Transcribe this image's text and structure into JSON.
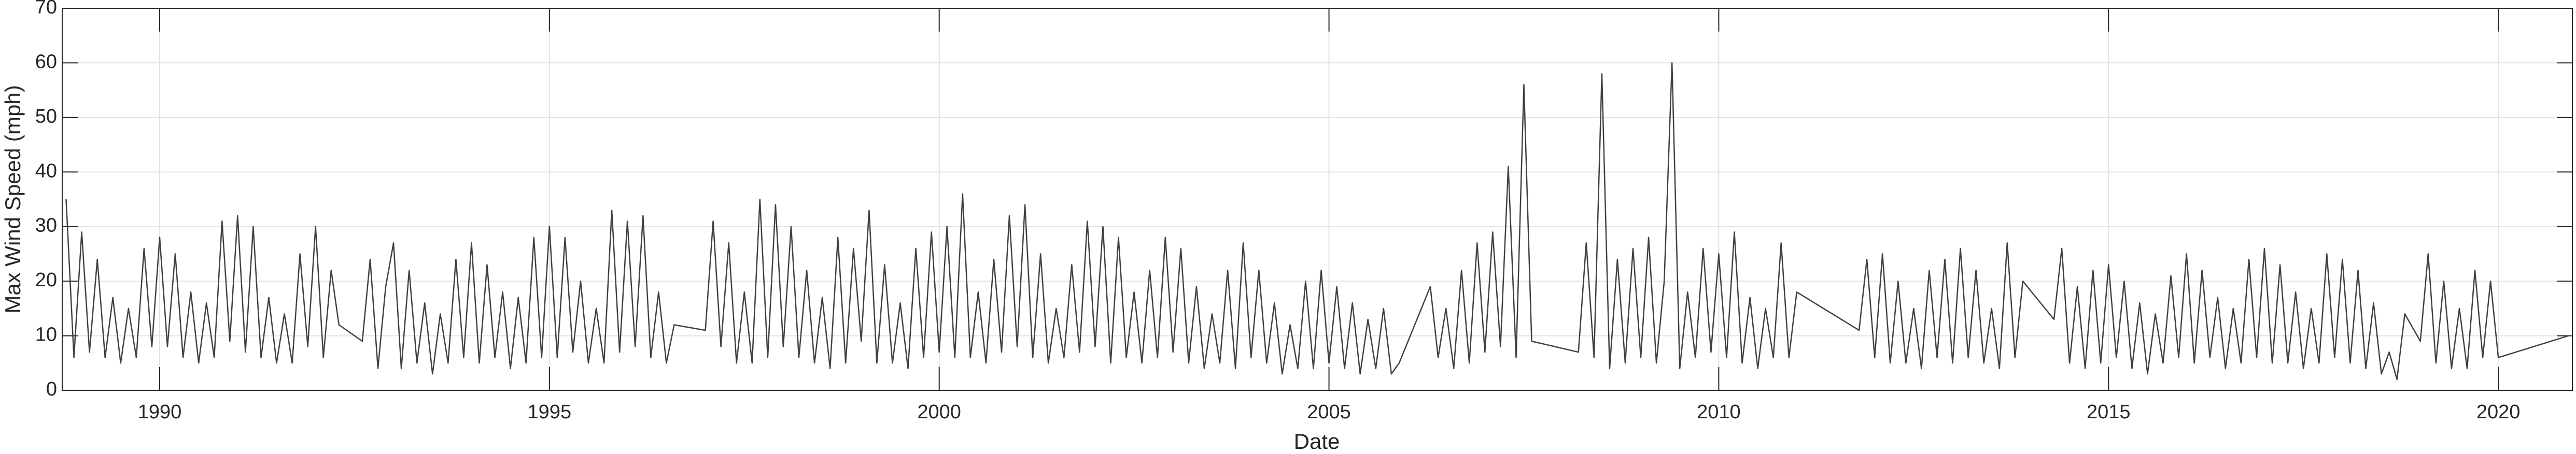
{
  "chart_data": {
    "type": "line",
    "xlabel": "Date",
    "ylabel": "Max Wind Speed (mph)",
    "xlim": [
      1988.75,
      2020.95
    ],
    "xticks": [
      1990,
      1995,
      2000,
      2005,
      2010,
      2015,
      2020
    ],
    "ylim": [
      0,
      70
    ],
    "yticks": [
      0,
      10,
      20,
      30,
      40,
      50,
      60,
      70
    ],
    "grid": true,
    "color": "#404040",
    "x": [
      1988.8,
      1988.9,
      1989.0,
      1989.1,
      1989.2,
      1989.3,
      1989.4,
      1989.5,
      1989.6,
      1989.7,
      1989.8,
      1989.9,
      1990.0,
      1990.1,
      1990.2,
      1990.3,
      1990.4,
      1990.5,
      1990.6,
      1990.7,
      1990.8,
      1990.9,
      1991.0,
      1991.1,
      1991.2,
      1991.3,
      1991.4,
      1991.5,
      1991.6,
      1991.7,
      1991.8,
      1991.9,
      1992.0,
      1992.1,
      1992.2,
      1992.3,
      1992.6,
      1992.7,
      1992.8,
      1992.9,
      1993.0,
      1993.1,
      1993.2,
      1993.3,
      1993.4,
      1993.5,
      1993.6,
      1993.7,
      1993.8,
      1993.9,
      1994.0,
      1994.1,
      1994.2,
      1994.3,
      1994.4,
      1994.5,
      1994.6,
      1994.7,
      1994.8,
      1994.9,
      1995.0,
      1995.1,
      1995.2,
      1995.3,
      1995.4,
      1995.5,
      1995.6,
      1995.7,
      1995.8,
      1995.9,
      1996.0,
      1996.1,
      1996.2,
      1996.3,
      1996.4,
      1996.5,
      1996.6,
      1997.0,
      1997.1,
      1997.2,
      1997.3,
      1997.4,
      1997.5,
      1997.6,
      1997.7,
      1997.8,
      1997.9,
      1998.0,
      1998.1,
      1998.2,
      1998.3,
      1998.4,
      1998.5,
      1998.6,
      1998.7,
      1998.8,
      1998.9,
      1999.0,
      1999.1,
      1999.2,
      1999.3,
      1999.4,
      1999.5,
      1999.6,
      1999.7,
      1999.8,
      1999.9,
      2000.0,
      2000.1,
      2000.2,
      2000.3,
      2000.4,
      2000.5,
      2000.6,
      2000.7,
      2000.8,
      2000.9,
      2001.0,
      2001.1,
      2001.2,
      2001.3,
      2001.4,
      2001.5,
      2001.6,
      2001.7,
      2001.8,
      2001.9,
      2002.0,
      2002.1,
      2002.2,
      2002.3,
      2002.4,
      2002.5,
      2002.6,
      2002.7,
      2002.8,
      2002.9,
      2003.0,
      2003.1,
      2003.2,
      2003.3,
      2003.4,
      2003.5,
      2003.6,
      2003.7,
      2003.8,
      2003.9,
      2004.0,
      2004.1,
      2004.2,
      2004.3,
      2004.4,
      2004.5,
      2004.6,
      2004.7,
      2004.8,
      2004.9,
      2005.0,
      2005.1,
      2005.2,
      2005.3,
      2005.4,
      2005.5,
      2005.6,
      2005.7,
      2005.8,
      2005.9,
      2006.3,
      2006.4,
      2006.5,
      2006.6,
      2006.7,
      2006.8,
      2006.9,
      2007.0,
      2007.1,
      2007.2,
      2007.3,
      2007.4,
      2007.5,
      2007.6,
      2008.2,
      2008.3,
      2008.4,
      2008.5,
      2008.6,
      2008.7,
      2008.8,
      2008.9,
      2009.0,
      2009.1,
      2009.2,
      2009.3,
      2009.4,
      2009.5,
      2009.6,
      2009.7,
      2009.8,
      2009.9,
      2010.0,
      2010.1,
      2010.2,
      2010.3,
      2010.4,
      2010.5,
      2010.6,
      2010.7,
      2010.8,
      2010.9,
      2011.0,
      2011.8,
      2011.9,
      2012.0,
      2012.1,
      2012.2,
      2012.3,
      2012.4,
      2012.5,
      2012.6,
      2012.7,
      2012.8,
      2012.9,
      2013.0,
      2013.1,
      2013.2,
      2013.3,
      2013.4,
      2013.5,
      2013.6,
      2013.7,
      2013.8,
      2013.9,
      2014.3,
      2014.4,
      2014.5,
      2014.6,
      2014.7,
      2014.8,
      2014.9,
      2015.0,
      2015.1,
      2015.2,
      2015.3,
      2015.4,
      2015.5,
      2015.6,
      2015.7,
      2015.8,
      2015.9,
      2016.0,
      2016.1,
      2016.2,
      2016.3,
      2016.4,
      2016.5,
      2016.6,
      2016.7,
      2016.8,
      2016.9,
      2017.0,
      2017.1,
      2017.2,
      2017.3,
      2017.4,
      2017.5,
      2017.6,
      2017.7,
      2017.8,
      2017.9,
      2018.0,
      2018.1,
      2018.2,
      2018.3,
      2018.4,
      2018.5,
      2018.6,
      2018.7,
      2018.8,
      2019.0,
      2019.1,
      2019.2,
      2019.3,
      2019.4,
      2019.5,
      2019.6,
      2019.7,
      2019.8,
      2019.9,
      2020.0,
      2020.9
    ],
    "values": [
      35,
      6,
      29,
      7,
      24,
      6,
      17,
      5,
      15,
      6,
      26,
      8,
      28,
      8,
      25,
      6,
      18,
      5,
      16,
      6,
      31,
      9,
      32,
      7,
      30,
      6,
      17,
      5,
      14,
      5,
      25,
      8,
      30,
      6,
      22,
      12,
      9,
      24,
      4,
      19,
      27,
      4,
      22,
      5,
      16,
      3,
      14,
      5,
      24,
      6,
      27,
      5,
      23,
      6,
      18,
      4,
      17,
      5,
      28,
      6,
      30,
      6,
      28,
      7,
      20,
      5,
      15,
      5,
      33,
      7,
      31,
      8,
      32,
      6,
      18,
      5,
      12,
      11,
      31,
      8,
      27,
      5,
      18,
      5,
      35,
      6,
      34,
      8,
      30,
      6,
      22,
      5,
      17,
      4,
      28,
      5,
      26,
      9,
      33,
      5,
      23,
      5,
      16,
      4,
      26,
      6,
      29,
      7,
      30,
      6,
      36,
      6,
      18,
      5,
      24,
      7,
      32,
      8,
      34,
      6,
      25,
      5,
      15,
      6,
      23,
      7,
      31,
      8,
      30,
      5,
      28,
      6,
      18,
      5,
      22,
      6,
      28,
      7,
      26,
      5,
      19,
      4,
      14,
      5,
      22,
      4,
      27,
      6,
      22,
      5,
      16,
      3,
      12,
      4,
      20,
      4,
      22,
      5,
      19,
      4,
      16,
      3,
      13,
      4,
      15,
      3,
      5,
      19,
      6,
      15,
      4,
      22,
      5,
      27,
      7,
      29,
      8,
      41,
      6,
      56,
      9,
      7,
      27,
      6,
      58,
      4,
      24,
      5,
      26,
      6,
      28,
      5,
      20,
      60,
      4,
      18,
      6,
      26,
      7,
      25,
      6,
      29,
      5,
      17,
      4,
      15,
      6,
      27,
      6,
      18,
      11,
      24,
      6,
      25,
      5,
      20,
      5,
      15,
      4,
      22,
      6,
      24,
      5,
      26,
      6,
      22,
      5,
      15,
      4,
      27,
      6,
      20,
      13,
      26,
      5,
      19,
      4,
      22,
      5,
      23,
      6,
      20,
      4,
      16,
      3,
      14,
      5,
      21,
      6,
      25,
      5,
      22,
      6,
      17,
      4,
      15,
      5,
      24,
      6,
      26,
      5,
      23,
      5,
      18,
      4,
      15,
      5,
      25,
      6,
      24,
      5,
      22,
      4,
      16,
      3,
      7,
      2,
      14,
      9,
      25,
      5,
      20,
      4,
      15,
      4,
      22,
      6,
      20,
      6,
      10
    ]
  }
}
